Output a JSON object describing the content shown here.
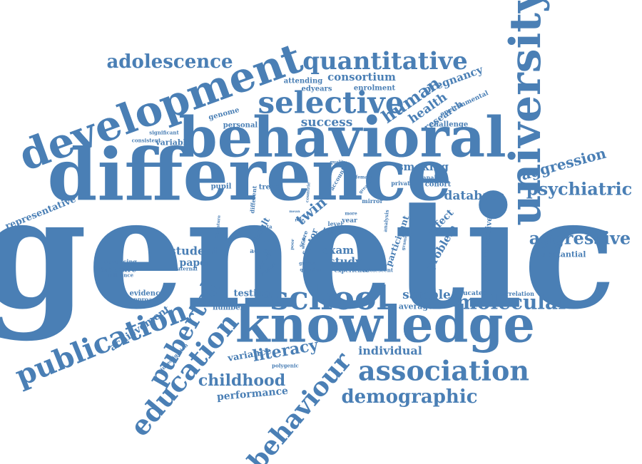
{
  "colors": {
    "word": "#4a7fb5",
    "background": "#ffffff"
  },
  "words": [
    {
      "text": "genetic",
      "weight": 100
    },
    {
      "text": "difference",
      "weight": 60
    },
    {
      "text": "behavioral",
      "weight": 52
    },
    {
      "text": "knowledge",
      "weight": 48
    },
    {
      "text": "development",
      "weight": 46
    },
    {
      "text": "university",
      "weight": 40
    },
    {
      "text": "school",
      "weight": 36
    },
    {
      "text": "selective",
      "weight": 34
    },
    {
      "text": "publication",
      "weight": 34
    },
    {
      "text": "association",
      "weight": 34
    },
    {
      "text": "education",
      "weight": 34
    },
    {
      "text": "behaviour",
      "weight": 30
    },
    {
      "text": "quantitative",
      "weight": 30
    },
    {
      "text": "pubertal",
      "weight": 30
    },
    {
      "text": "demographic",
      "weight": 24
    },
    {
      "text": "molecular",
      "weight": 24
    },
    {
      "text": "adolescence",
      "weight": 22
    },
    {
      "text": "aggressive",
      "weight": 20
    },
    {
      "text": "psychiatric",
      "weight": 20
    },
    {
      "text": "human",
      "weight": 20
    },
    {
      "text": "childhood",
      "weight": 20
    },
    {
      "text": "literacy",
      "weight": 20
    },
    {
      "text": "aggression",
      "weight": 18
    },
    {
      "text": "success",
      "weight": 16
    },
    {
      "text": "twin",
      "weight": 16
    },
    {
      "text": "health",
      "weight": 16
    },
    {
      "text": "database",
      "weight": 16
    },
    {
      "text": "sample",
      "weight": 16
    },
    {
      "text": "student",
      "weight": 14
    },
    {
      "text": "individual",
      "weight": 14
    },
    {
      "text": "consortium",
      "weight": 14
    },
    {
      "text": "pregnancy",
      "weight": 14
    },
    {
      "text": "smoking",
      "weight": 14
    },
    {
      "text": "exam",
      "weight": 14
    },
    {
      "text": "study",
      "weight": 14
    },
    {
      "text": "problem",
      "weight": 14
    },
    {
      "text": "effect",
      "weight": 12
    },
    {
      "text": "paper",
      "weight": 12
    },
    {
      "text": "performance",
      "weight": 12
    },
    {
      "text": "achievement",
      "weight": 12
    },
    {
      "text": "representative",
      "weight": 12
    },
    {
      "text": "testing",
      "weight": 12
    },
    {
      "text": "variance",
      "weight": 12
    },
    {
      "text": "research",
      "weight": 12
    },
    {
      "text": "participant",
      "weight": 11
    },
    {
      "text": "result",
      "weight": 11
    },
    {
      "text": "factor",
      "weight": 11
    },
    {
      "text": "measure",
      "weight": 10
    },
    {
      "text": "comprehensive",
      "weight": 10
    },
    {
      "text": "substantial",
      "weight": 10
    },
    {
      "text": "variable",
      "weight": 10
    },
    {
      "text": "average",
      "weight": 10
    },
    {
      "text": "pupil",
      "weight": 9
    },
    {
      "text": "trend",
      "weight": 9
    },
    {
      "text": "cohort",
      "weight": 9
    },
    {
      "text": "genome",
      "weight": 9
    },
    {
      "text": "personal",
      "weight": 9
    },
    {
      "text": "enrolment",
      "weight": 9
    },
    {
      "text": "edyears",
      "weight": 9
    },
    {
      "text": "attending",
      "weight": 9
    },
    {
      "text": "challenge",
      "weight": 9
    },
    {
      "text": "environmental",
      "weight": 8
    },
    {
      "text": "evidence",
      "weight": 9
    },
    {
      "text": "number",
      "weight": 9
    },
    {
      "text": "type",
      "weight": 9
    },
    {
      "text": "action",
      "weight": 8
    },
    {
      "text": "educated",
      "weight": 8
    },
    {
      "text": "correlation",
      "weight": 7
    },
    {
      "text": "approach",
      "weight": 7
    },
    {
      "text": "advancing",
      "weight": 7
    },
    {
      "text": "influence",
      "weight": 6
    },
    {
      "text": "maternal",
      "weight": 6
    },
    {
      "text": "century",
      "weight": 7
    },
    {
      "text": "different",
      "weight": 7
    },
    {
      "text": "account",
      "weight": 7
    },
    {
      "text": "analyse",
      "weight": 7
    },
    {
      "text": "private",
      "weight": 7
    },
    {
      "text": "mirror",
      "weight": 7
    },
    {
      "text": "experience",
      "weight": 7
    },
    {
      "text": "adolescent",
      "weight": 6
    },
    {
      "text": "polygenic",
      "weight": 6
    },
    {
      "text": "investigation",
      "weight": 6
    },
    {
      "text": "significant",
      "weight": 6
    },
    {
      "text": "consistent",
      "weight": 6
    },
    {
      "text": "year",
      "weight": 8
    },
    {
      "text": "level",
      "weight": 7
    },
    {
      "text": "score",
      "weight": 7
    },
    {
      "text": "data",
      "weight": 6
    },
    {
      "text": "analysis",
      "weight": 6
    },
    {
      "text": "literature",
      "weight": 5
    },
    {
      "text": "quality",
      "weight": 5
    },
    {
      "text": "female",
      "weight": 5
    },
    {
      "text": "greater",
      "weight": 5
    },
    {
      "text": "countrie",
      "weight": 5
    },
    {
      "text": "role",
      "weight": 5
    },
    {
      "text": "weak",
      "weight": 5
    },
    {
      "text": "poor",
      "weight": 5
    },
    {
      "text": "more",
      "weight": 5
    },
    {
      "text": "support",
      "weight": 5
    },
    {
      "text": "involved",
      "weight": 5
    },
    {
      "text": "question",
      "weight": 5
    },
    {
      "text": "growth",
      "weight": 5
    },
    {
      "text": "grammar",
      "weight": 5
    },
    {
      "text": "mean",
      "weight": 4
    },
    {
      "text": "acid",
      "weight": 4
    }
  ]
}
